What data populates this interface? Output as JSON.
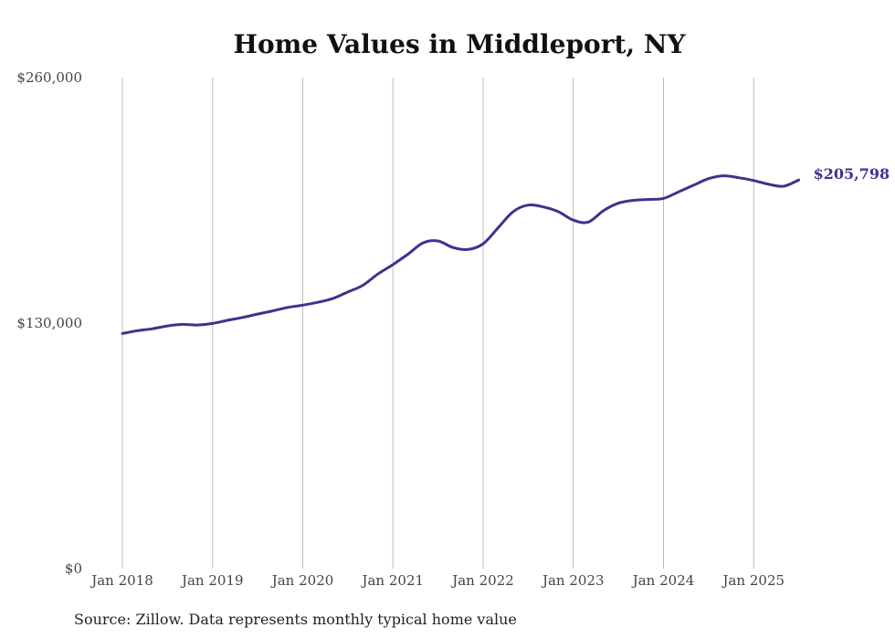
{
  "chart_data": {
    "type": "line",
    "title": "Home Values in Middleport, NY",
    "source": "Source: Zillow. Data represents monthly typical home value",
    "xlabel": "",
    "ylabel": "",
    "ylim": [
      0,
      260000
    ],
    "y_ticks": [
      0,
      130000,
      260000
    ],
    "y_tick_labels": [
      "$0",
      "$130,000",
      "$260,000"
    ],
    "x_tick_labels": [
      "Jan 2018",
      "Jan 2019",
      "Jan 2020",
      "Jan 2021",
      "Jan 2022",
      "Jan 2023",
      "Jan 2024",
      "Jan 2025"
    ],
    "x_ticks": [
      "2018-01",
      "2019-01",
      "2020-01",
      "2021-01",
      "2022-01",
      "2023-01",
      "2024-01",
      "2025-01"
    ],
    "grid": "vertical",
    "line_color": "#3b3490",
    "end_label": "$205,798",
    "series": [
      {
        "name": "",
        "points": [
          [
            "2018-01",
            124500
          ],
          [
            "2018-03",
            126000
          ],
          [
            "2018-05",
            127000
          ],
          [
            "2018-07",
            128500
          ],
          [
            "2018-09",
            129300
          ],
          [
            "2018-11",
            129000
          ],
          [
            "2019-01",
            129800
          ],
          [
            "2019-03",
            131500
          ],
          [
            "2019-05",
            133000
          ],
          [
            "2019-07",
            134800
          ],
          [
            "2019-09",
            136500
          ],
          [
            "2019-11",
            138300
          ],
          [
            "2020-01",
            139500
          ],
          [
            "2020-03",
            141000
          ],
          [
            "2020-05",
            143000
          ],
          [
            "2020-07",
            146500
          ],
          [
            "2020-09",
            150000
          ],
          [
            "2020-11",
            156000
          ],
          [
            "2021-01",
            161000
          ],
          [
            "2021-03",
            166500
          ],
          [
            "2021-05",
            172500
          ],
          [
            "2021-07",
            173500
          ],
          [
            "2021-09",
            170000
          ],
          [
            "2021-11",
            169000
          ],
          [
            "2022-01",
            172000
          ],
          [
            "2022-03",
            180500
          ],
          [
            "2022-05",
            189000
          ],
          [
            "2022-07",
            192500
          ],
          [
            "2022-09",
            191500
          ],
          [
            "2022-11",
            189000
          ],
          [
            "2023-01",
            184500
          ],
          [
            "2023-03",
            183500
          ],
          [
            "2023-05",
            189500
          ],
          [
            "2023-07",
            193500
          ],
          [
            "2023-09",
            195000
          ],
          [
            "2023-11",
            195500
          ],
          [
            "2024-01",
            196000
          ],
          [
            "2024-03",
            199500
          ],
          [
            "2024-05",
            203000
          ],
          [
            "2024-07",
            206500
          ],
          [
            "2024-09",
            208000
          ],
          [
            "2024-11",
            207000
          ],
          [
            "2025-01",
            205500
          ],
          [
            "2025-03",
            203500
          ],
          [
            "2025-05",
            202500
          ],
          [
            "2025-07",
            205798
          ]
        ]
      }
    ]
  }
}
